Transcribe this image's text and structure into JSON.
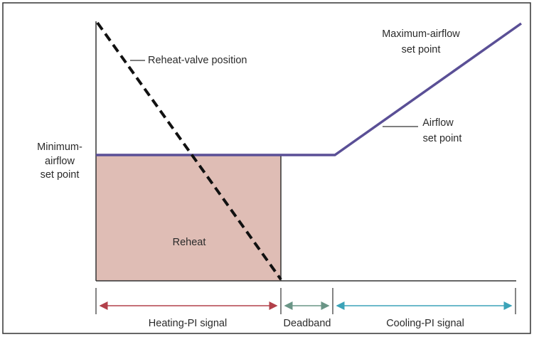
{
  "labels": {
    "reheat_valve": "Reheat-valve position",
    "max_airflow": [
      "Maximum-airflow",
      "set point"
    ],
    "airflow": [
      "Airflow",
      "set point"
    ],
    "min_airflow": [
      "Minimum-",
      "airflow",
      "set point"
    ],
    "reheat": "Reheat"
  },
  "signals": [
    "Heating-PI signal",
    "Deadband",
    "Cooling-PI signal"
  ]
}
